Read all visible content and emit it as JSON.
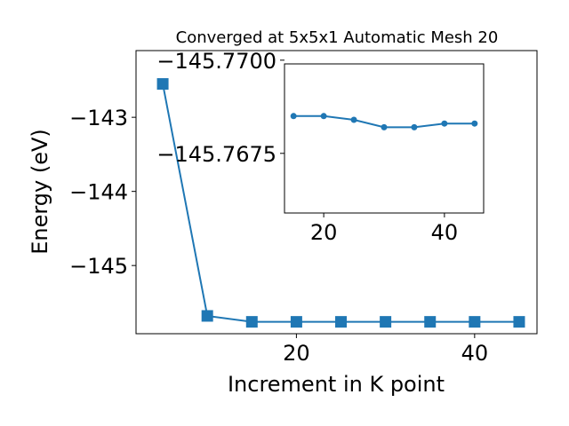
{
  "chart_data": [
    {
      "type": "line",
      "title": "Converged at 5x5x1 Automatic Mesh 20",
      "xlabel": "Increment in K point",
      "ylabel": "Energy (eV)",
      "x": [
        5,
        10,
        15,
        20,
        25,
        30,
        35,
        40,
        45
      ],
      "y": [
        -142.55,
        -145.68,
        -145.76,
        -145.76,
        -145.76,
        -145.76,
        -145.76,
        -145.76,
        -145.76
      ],
      "marker": "square",
      "color": "#1f77b4",
      "xticks": [
        20,
        40
      ],
      "xtick_labels": [
        "20",
        "40"
      ],
      "yticks": [
        -143,
        -144,
        -145
      ],
      "ytick_labels": [
        "−143",
        "−144",
        "−145"
      ],
      "xlim": [
        2.0,
        47.0
      ],
      "ylim": [
        -145.92,
        -142.1
      ],
      "grid": false
    },
    {
      "type": "line",
      "inset": true,
      "x": [
        15,
        20,
        25,
        30,
        35,
        40,
        45
      ],
      "y": [
        -145.7685,
        -145.7685,
        -145.7684,
        -145.7682,
        -145.7682,
        -145.7683,
        -145.7683
      ],
      "marker": "circle",
      "color": "#1f77b4",
      "xticks": [
        20,
        40
      ],
      "xtick_labels": [
        "20",
        "40"
      ],
      "yticks": [
        -145.77,
        -145.7675
      ],
      "ytick_labels": [
        "−145.7700",
        "−145.7675"
      ],
      "xlim": [
        13.5,
        46.5
      ],
      "ylim": [
        -145.7659,
        -145.7699
      ],
      "grid": false
    }
  ]
}
